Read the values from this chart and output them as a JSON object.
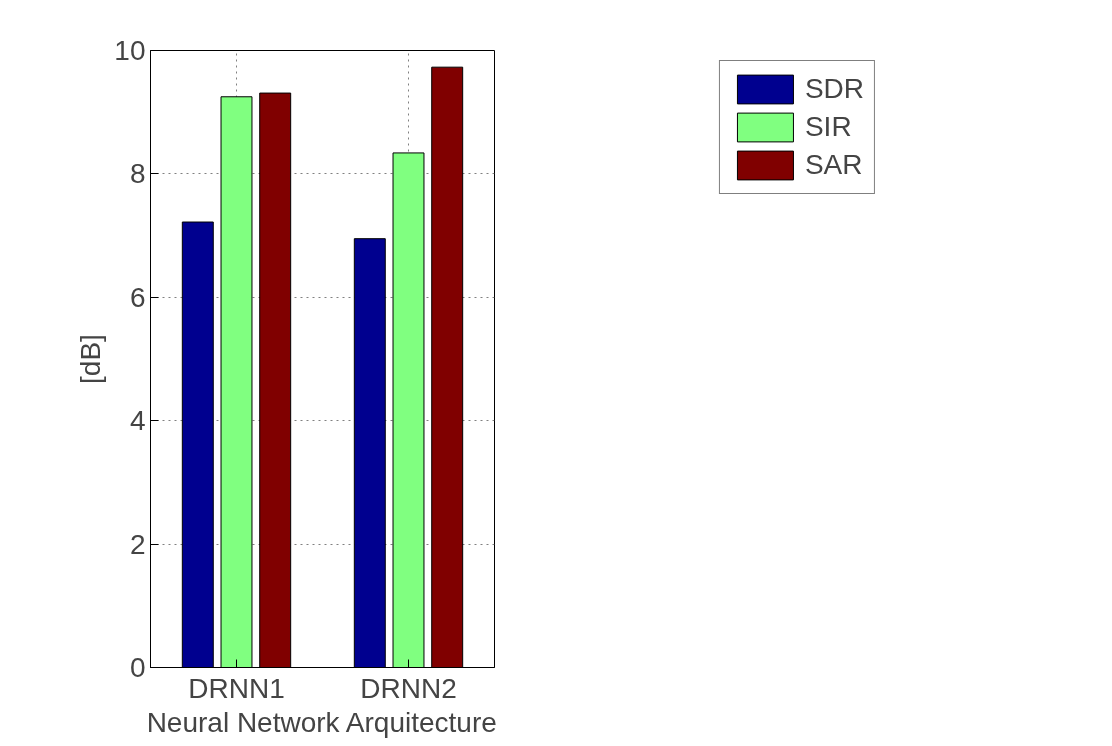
{
  "chart_data": {
    "type": "bar",
    "xlabel": "Neural Network Arquitecture",
    "ylabel": "[dB]",
    "categories": [
      "DRNN1",
      "DRNN2"
    ],
    "series": [
      {
        "name": "SDR",
        "color": "#00008f",
        "values": [
          7.22,
          6.95
        ]
      },
      {
        "name": "SIR",
        "color": "#80ff80",
        "values": [
          9.25,
          8.34
        ]
      },
      {
        "name": "SAR",
        "color": "#800000",
        "values": [
          9.31,
          9.73
        ]
      }
    ],
    "ylim": [
      0,
      10
    ],
    "yticks": [
      0,
      2,
      4,
      6,
      8,
      10
    ],
    "grid": true,
    "legend": "top right"
  }
}
